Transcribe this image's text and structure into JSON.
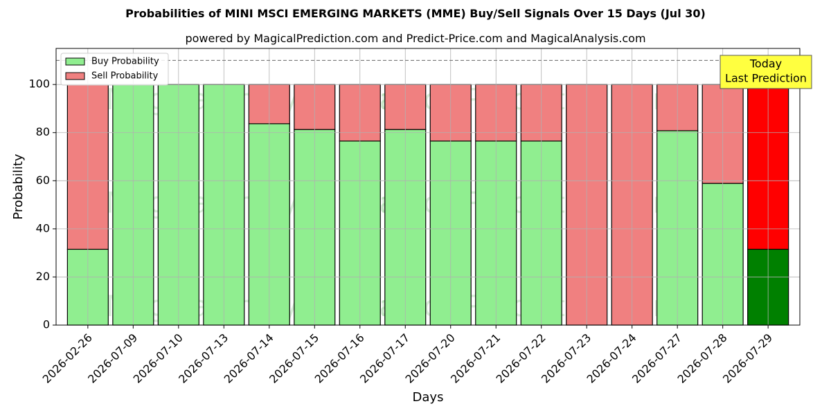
{
  "chart_data": {
    "type": "bar",
    "stacked": true,
    "title": "Probabilities of MINI MSCI EMERGING MARKETS (MME) Buy/Sell Signals Over 15 Days (Jul 30)",
    "subtitle": "powered by MagicalPrediction.com and Predict-Price.com and MagicalAnalysis.com",
    "xlabel": "Days",
    "ylabel": "Probability",
    "categories": [
      "2026-02-26",
      "2026-07-09",
      "2026-07-10",
      "2026-07-13",
      "2026-07-14",
      "2026-07-15",
      "2026-07-16",
      "2026-07-17",
      "2026-07-20",
      "2026-07-21",
      "2026-07-22",
      "2026-07-23",
      "2026-07-24",
      "2026-07-27",
      "2026-07-28",
      "2026-07-29"
    ],
    "series": [
      {
        "name": "Buy Probability",
        "color": "#90ee90",
        "highlight_color": "#008000",
        "values": [
          31.5,
          100,
          100,
          100,
          83.7,
          81.3,
          76.5,
          81.3,
          76.5,
          76.5,
          76.5,
          0,
          0,
          80.8,
          58.9,
          31.5
        ]
      },
      {
        "name": "Sell Probability",
        "color": "#f08080",
        "highlight_color": "#ff0000",
        "values": [
          68.5,
          0,
          0,
          0,
          16.3,
          18.7,
          23.5,
          18.7,
          23.5,
          23.5,
          23.5,
          100,
          100,
          19.2,
          41.1,
          68.5
        ]
      }
    ],
    "highlight_index": 15,
    "ylim": [
      0,
      115
    ],
    "yticks": [
      0,
      20,
      40,
      60,
      80,
      100
    ],
    "reference_line": 110,
    "grid": true,
    "legend": "top-left",
    "annotation": [
      "Today",
      "Last Prediction"
    ],
    "annotation_color": "#ffff40",
    "watermarks": [
      "MagicalAnalysis.com",
      "MagicalPrediction.com"
    ]
  }
}
